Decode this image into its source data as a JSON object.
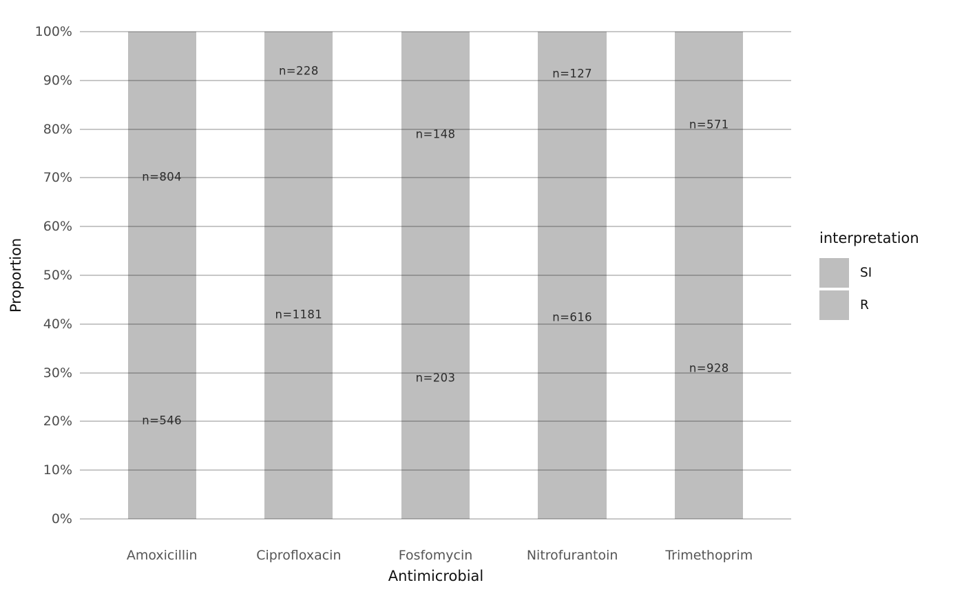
{
  "chart_data": {
    "type": "bar",
    "subtype": "100%-stacked-vertical",
    "title": "",
    "xlabel": "Antimicrobial",
    "ylabel": "Proportion",
    "categories": [
      "Amoxicillin",
      "Ciprofloxacin",
      "Fosfomycin",
      "Nitrofurantoin",
      "Trimethoprim"
    ],
    "series": [
      {
        "name": "SI",
        "values": [
          804,
          228,
          148,
          127,
          571
        ],
        "labels": [
          "n=804",
          "n=228",
          "n=148",
          "n=127",
          "n=571"
        ]
      },
      {
        "name": "R",
        "values": [
          546,
          1181,
          203,
          616,
          928
        ],
        "labels": [
          "n=546",
          "n=1181",
          "n=203",
          "n=616",
          "n=928"
        ]
      }
    ],
    "stack_order_bottom_to_top": [
      "R",
      "SI"
    ],
    "y_ticks": [
      "0%",
      "10%",
      "20%",
      "30%",
      "40%",
      "50%",
      "60%",
      "70%",
      "80%",
      "90%",
      "100%"
    ],
    "ylim": [
      0,
      1
    ],
    "grid": "horizontal-on-top-of-bars",
    "legend": {
      "title": "interpretation",
      "position": "right",
      "entries": [
        "SI",
        "R"
      ]
    },
    "colors": {
      "bar_fill": "#bebebe",
      "gridline": "rgba(0,0,0,0.22)",
      "tick_text": "#4d4d4d",
      "axis_title_text": "#111111",
      "bar_label_text": "#2b2b2b",
      "background": "#ffffff"
    }
  }
}
